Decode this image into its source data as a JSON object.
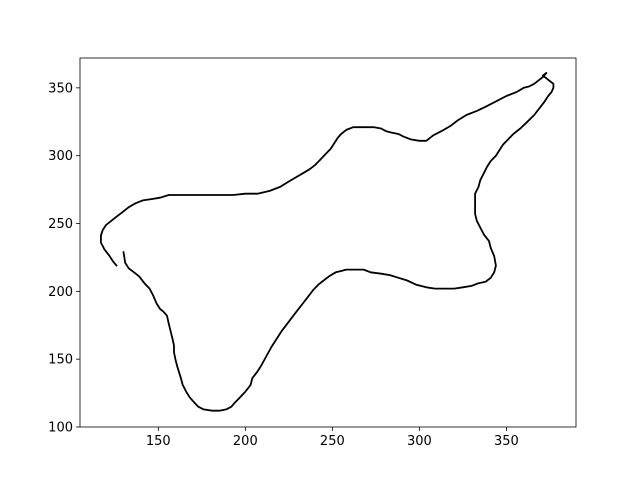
{
  "chart_data": {
    "type": "line",
    "title": "",
    "xlabel": "",
    "ylabel": "",
    "xlim": [
      105,
      390
    ],
    "ylim": [
      100,
      372
    ],
    "xticks": [
      150,
      200,
      250,
      300,
      350
    ],
    "yticks": [
      100,
      150,
      200,
      250,
      300,
      350
    ],
    "grid": false,
    "legend": "none",
    "series": [
      {
        "color": "#000000",
        "points": [
          [
            130,
            229
          ],
          [
            131,
            221
          ],
          [
            133,
            217
          ],
          [
            136,
            214
          ],
          [
            139,
            211
          ],
          [
            142,
            206
          ],
          [
            145,
            202
          ],
          [
            147,
            197
          ],
          [
            149,
            191
          ],
          [
            151,
            187
          ],
          [
            153,
            185
          ],
          [
            155,
            182
          ],
          [
            156,
            176
          ],
          [
            157,
            171
          ],
          [
            158,
            166
          ],
          [
            159,
            160
          ],
          [
            159,
            155
          ],
          [
            160,
            149
          ],
          [
            161,
            144
          ],
          [
            162,
            140
          ],
          [
            163,
            136
          ],
          [
            164,
            131
          ],
          [
            166,
            126
          ],
          [
            168,
            122
          ],
          [
            170,
            119
          ],
          [
            173,
            115
          ],
          [
            176,
            113
          ],
          [
            181,
            112
          ],
          [
            185,
            112
          ],
          [
            189,
            113
          ],
          [
            192,
            115
          ],
          [
            194,
            118
          ],
          [
            197,
            122
          ],
          [
            200,
            126
          ],
          [
            203,
            131
          ],
          [
            204,
            136
          ],
          [
            207,
            141
          ],
          [
            209,
            145
          ],
          [
            212,
            152
          ],
          [
            215,
            159
          ],
          [
            218,
            165
          ],
          [
            221,
            171
          ],
          [
            224,
            176
          ],
          [
            227,
            181
          ],
          [
            230,
            186
          ],
          [
            233,
            191
          ],
          [
            236,
            196
          ],
          [
            239,
            201
          ],
          [
            242,
            205
          ],
          [
            245,
            208
          ],
          [
            248,
            211
          ],
          [
            252,
            214
          ],
          [
            255,
            215
          ],
          [
            258,
            216
          ],
          [
            263,
            216
          ],
          [
            268,
            216
          ],
          [
            272,
            214
          ],
          [
            278,
            213
          ],
          [
            283,
            212
          ],
          [
            288,
            210
          ],
          [
            293,
            208
          ],
          [
            298,
            205
          ],
          [
            304,
            203
          ],
          [
            309,
            202
          ],
          [
            314,
            202
          ],
          [
            320,
            202
          ],
          [
            325,
            203
          ],
          [
            330,
            204
          ],
          [
            334,
            206
          ],
          [
            338,
            207
          ],
          [
            341,
            210
          ],
          [
            343,
            214
          ],
          [
            344,
            219
          ],
          [
            343,
            226
          ],
          [
            341,
            232
          ],
          [
            340,
            237
          ],
          [
            337,
            242
          ],
          [
            335,
            247
          ],
          [
            333,
            252
          ],
          [
            332,
            257
          ],
          [
            332,
            262
          ],
          [
            332,
            267
          ],
          [
            332,
            272
          ],
          [
            334,
            277
          ],
          [
            335,
            282
          ],
          [
            337,
            287
          ],
          [
            339,
            292
          ],
          [
            341,
            296
          ],
          [
            344,
            300
          ],
          [
            346,
            304
          ],
          [
            348,
            308
          ],
          [
            351,
            312
          ],
          [
            354,
            316
          ],
          [
            358,
            320
          ],
          [
            362,
            325
          ],
          [
            366,
            330
          ],
          [
            369,
            335
          ],
          [
            372,
            340
          ],
          [
            374,
            344
          ],
          [
            376,
            347
          ],
          [
            377,
            350
          ],
          [
            377,
            353
          ],
          [
            375,
            355
          ],
          [
            373,
            357
          ],
          [
            371,
            359
          ],
          [
            373,
            361
          ],
          [
            371,
            358
          ],
          [
            369,
            356
          ],
          [
            366,
            353
          ],
          [
            363,
            351
          ],
          [
            360,
            350
          ],
          [
            356,
            347
          ],
          [
            350,
            344
          ],
          [
            344,
            340
          ],
          [
            338,
            336
          ],
          [
            333,
            333
          ],
          [
            327,
            330
          ],
          [
            322,
            326
          ],
          [
            318,
            322
          ],
          [
            314,
            319
          ],
          [
            308,
            315
          ],
          [
            304,
            311
          ],
          [
            300,
            311
          ],
          [
            295,
            312
          ],
          [
            291,
            314
          ],
          [
            288,
            316
          ],
          [
            284,
            317
          ],
          [
            281,
            318
          ],
          [
            278,
            320
          ],
          [
            274,
            321
          ],
          [
            270,
            321
          ],
          [
            266,
            321
          ],
          [
            262,
            321
          ],
          [
            258,
            319
          ],
          [
            255,
            316
          ],
          [
            253,
            313
          ],
          [
            251,
            309
          ],
          [
            249,
            305
          ],
          [
            246,
            301
          ],
          [
            243,
            297
          ],
          [
            240,
            293
          ],
          [
            237,
            290
          ],
          [
            233,
            287
          ],
          [
            229,
            284
          ],
          [
            225,
            281
          ],
          [
            220,
            277
          ],
          [
            214,
            274
          ],
          [
            207,
            272
          ],
          [
            200,
            272
          ],
          [
            193,
            271
          ],
          [
            186,
            271
          ],
          [
            179,
            271
          ],
          [
            172,
            271
          ],
          [
            166,
            271
          ],
          [
            160,
            271
          ],
          [
            156,
            271
          ],
          [
            151,
            269
          ],
          [
            146,
            268
          ],
          [
            141,
            267
          ],
          [
            137,
            265
          ],
          [
            133,
            262
          ],
          [
            129,
            258
          ],
          [
            126,
            255
          ],
          [
            123,
            252
          ],
          [
            120,
            249
          ],
          [
            118,
            245
          ],
          [
            117,
            241
          ],
          [
            117,
            236
          ],
          [
            119,
            231
          ],
          [
            122,
            226
          ],
          [
            124,
            222
          ],
          [
            126,
            219
          ]
        ]
      }
    ]
  }
}
